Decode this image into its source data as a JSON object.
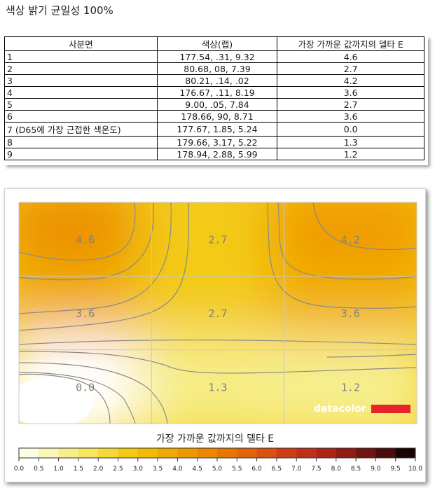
{
  "page": {
    "title": "색상 밝기 균일성 100%"
  },
  "table": {
    "headers": [
      "사분면",
      "색상(랩)",
      "가장 가까운 값까지의 델타 E"
    ],
    "rows": [
      {
        "quadrant": "1",
        "lab": "177.54,    .31,   9.32",
        "delta_e": "4.6"
      },
      {
        "quadrant": "2",
        "lab": "80.68,     08,   7.39",
        "delta_e": "2.7"
      },
      {
        "quadrant": "3",
        "lab": "80.21,    .14,    .02",
        "delta_e": "4.2"
      },
      {
        "quadrant": "4",
        "lab": "176.67,    .11,   8.19",
        "delta_e": "3.6"
      },
      {
        "quadrant": "5",
        "lab": "9.00,    .05,   7.84",
        "delta_e": "2.7"
      },
      {
        "quadrant": "6",
        "lab": "178.66,     90,   8.71",
        "delta_e": "3.6"
      },
      {
        "quadrant": "7 (D65에 가장 근접한 색온도)",
        "lab": "177.67,   1.85,   5.24",
        "delta_e": "0.0"
      },
      {
        "quadrant": "8",
        "lab": "179.66,   3.17,   5.22",
        "delta_e": "1.3"
      },
      {
        "quadrant": "9",
        "lab": "178.94,   2.88,   5.99",
        "delta_e": "1.2"
      }
    ]
  },
  "chart_data": {
    "type": "heatmap",
    "title": "가장 가까운 값까지의 델타 E",
    "grid": {
      "rows": 3,
      "cols": 3
    },
    "values": [
      [
        4.6,
        2.7,
        4.2
      ],
      [
        3.6,
        2.7,
        3.6
      ],
      [
        0.0,
        1.3,
        1.2
      ]
    ],
    "value_labels": [
      [
        "4.6",
        "2.7",
        "4.2"
      ],
      [
        "3.6",
        "2.7",
        "3.6"
      ],
      [
        "0.0",
        "1.3",
        "1.2"
      ]
    ],
    "colorbar": {
      "min": 0,
      "max": 10,
      "step": 0.5,
      "ticks": [
        "0.0",
        "0.5",
        "1.0",
        "1.5",
        "2.0",
        "2.5",
        "3.0",
        "3.5",
        "4.0",
        "4.5",
        "5.0",
        "5.5",
        "6.0",
        "6.5",
        "7.0",
        "7.5",
        "8.0",
        "8.5",
        "9.0",
        "9.5",
        "10.0"
      ]
    },
    "watermark": "datacolor",
    "colors": {
      "c0": "#ffffff",
      "c1": "#f8f2a0",
      "c2": "#f5e14a",
      "c3": "#f2c200",
      "c4": "#f0a000",
      "c5": "#e98000",
      "c6": "#e05a10",
      "c7": "#c83518",
      "c8": "#a02018",
      "c9": "#601010",
      "c10": "#000000",
      "contour": "#8a8a8a",
      "grid": "#c8c8c8",
      "label": "#808080",
      "brand_red": "#e8242b",
      "brand_text": "#ffffff"
    }
  }
}
